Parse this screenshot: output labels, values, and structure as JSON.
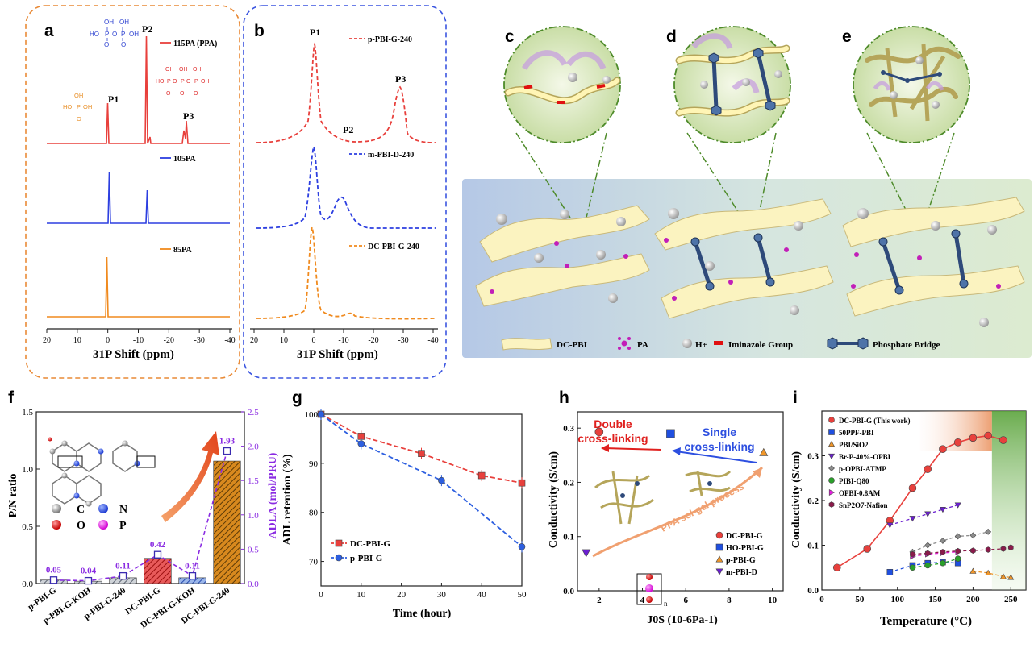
{
  "panels": {
    "a": {
      "letter": "a",
      "peaks": {
        "p1": "P1",
        "p2": "P2",
        "p3": "P3"
      },
      "ticks": [
        "20",
        "10",
        "0",
        "-10",
        "-20",
        "-30",
        "-40"
      ],
      "xlabel": "31P Shift (ppm)",
      "legend": [
        "115PA (PPA)",
        "105PA",
        "85PA"
      ]
    },
    "b": {
      "letter": "b",
      "legend": [
        "p-PBI-G-240",
        "m-PBI-D-240",
        "DC-PBI-G-240"
      ],
      "ticks": [
        "20",
        "10",
        "0",
        "-10",
        "-20",
        "-30",
        "-40"
      ],
      "xlabel": "31P Shift (ppm)"
    },
    "c": {
      "letter": "c"
    },
    "d": {
      "letter": "d"
    },
    "e": {
      "letter": "e"
    },
    "schematic_legend": {
      "dcpbi": "DC-PBI",
      "pa": "PA",
      "h": "H+",
      "iminazole": "Iminazole Group",
      "bridge": "Phosphate Bridge"
    },
    "f": {
      "letter": "f",
      "ylabel_left": "P/N ratio",
      "ylabel_right": "ADLA (mol/PRU)",
      "atoms": [
        "C",
        "N",
        "O",
        "P"
      ]
    },
    "g": {
      "letter": "g",
      "xlabel": "Time (hour)",
      "ylabel": "ADL retention (%)"
    },
    "h": {
      "letter": "h",
      "xlabel": "J0S (10-6Pa-1)",
      "ylabel": "Conductivity (S/cm)",
      "double": "Double",
      "double2": "cross-linking",
      "single": "Single",
      "single2": "cross-linking",
      "process": "PPA sol-gel process"
    },
    "i": {
      "letter": "i",
      "xlabel": "Temperature (°C)",
      "ylabel": "Conductivity (S/cm)"
    }
  },
  "chart_data": [
    {
      "type": "bar",
      "panel": "f",
      "categories": [
        "p-PBI-G",
        "p-PBI-G-KOH",
        "p-PBI-G-240",
        "DC-PBI-G",
        "DC-PBI-G-KOH",
        "DC-PBI-G-240"
      ],
      "series": [
        {
          "name": "P/N ratio",
          "values": [
            0.03,
            0.02,
            0.05,
            0.22,
            0.05,
            1.07
          ]
        },
        {
          "name": "ADLA",
          "values": [
            0.05,
            0.04,
            0.11,
            0.42,
            0.11,
            1.93
          ]
        }
      ],
      "data_labels": [
        "0.05",
        "0.04",
        "0.11",
        "0.42",
        "0.11",
        "1.93"
      ],
      "ylim_left": [
        0,
        1.5
      ],
      "ylim_right": [
        0,
        2.5
      ],
      "yticks_left": [
        "0.0",
        "0.5",
        "1.0",
        "1.5"
      ],
      "yticks_right": [
        "0.0",
        "0.5",
        "1.0",
        "1.5",
        "2.0",
        "2.5"
      ]
    },
    {
      "type": "line",
      "panel": "g",
      "x": [
        0,
        10,
        25,
        40,
        50
      ],
      "series": [
        {
          "name": "DC-PBI-G",
          "x": [
            0,
            10,
            25,
            40,
            50
          ],
          "values": [
            100,
            95.5,
            92,
            87.5,
            86
          ]
        },
        {
          "name": "p-PBI-G",
          "x": [
            0,
            10,
            30,
            50
          ],
          "values": [
            100,
            94,
            86.5,
            73
          ]
        }
      ],
      "xlim": [
        0,
        50
      ],
      "ylim": [
        65,
        100
      ],
      "xticks": [
        "0",
        "10",
        "20",
        "30",
        "40",
        "50"
      ],
      "yticks": [
        "70",
        "80",
        "90",
        "100"
      ]
    },
    {
      "type": "scatter",
      "panel": "h",
      "series": [
        {
          "name": "DC-PBI-G",
          "x": [
            2.0
          ],
          "values": [
            0.293
          ]
        },
        {
          "name": "HO-PBI-G",
          "x": [
            5.3
          ],
          "values": [
            0.29
          ]
        },
        {
          "name": "p-PBI-G",
          "x": [
            9.6
          ],
          "values": [
            0.255
          ]
        },
        {
          "name": "m-PBI-D",
          "x": [
            1.4
          ],
          "values": [
            0.07
          ]
        }
      ],
      "xlim": [
        1,
        10.5
      ],
      "ylim": [
        0,
        0.33
      ],
      "xticks": [
        "2",
        "4",
        "6",
        "8",
        "10"
      ],
      "yticks": [
        "0.0",
        "0.1",
        "0.2",
        "0.3"
      ]
    },
    {
      "type": "line",
      "panel": "i",
      "series": [
        {
          "name": "DC-PBI-G (This work)",
          "x": [
            20,
            60,
            90,
            120,
            140,
            160,
            180,
            200,
            220,
            240
          ],
          "values": [
            0.05,
            0.092,
            0.155,
            0.228,
            0.27,
            0.315,
            0.33,
            0.34,
            0.345,
            0.335
          ]
        },
        {
          "name": "50PPF-PBI",
          "x": [
            90,
            120,
            140,
            160,
            180
          ],
          "values": [
            0.04,
            0.055,
            0.06,
            0.062,
            0.06
          ]
        },
        {
          "name": "PBI/SiO2",
          "x": [
            200,
            220,
            240,
            250
          ],
          "values": [
            0.042,
            0.038,
            0.03,
            0.028
          ]
        },
        {
          "name": "Br-P-40%-OPBI",
          "x": [
            90,
            120,
            140,
            160,
            180
          ],
          "values": [
            0.145,
            0.16,
            0.17,
            0.18,
            0.19
          ]
        },
        {
          "name": "p-OPBI-ATMP",
          "x": [
            120,
            140,
            160,
            180,
            200,
            220
          ],
          "values": [
            0.085,
            0.1,
            0.11,
            0.12,
            0.122,
            0.13
          ]
        },
        {
          "name": "PIBI-Q80",
          "x": [
            120,
            140,
            160,
            180
          ],
          "values": [
            0.05,
            0.055,
            0.06,
            0.07
          ]
        },
        {
          "name": "OPBI-0.8AM",
          "x": [
            120,
            140,
            160,
            180
          ],
          "values": [
            0.075,
            0.08,
            0.083,
            0.085
          ]
        },
        {
          "name": "SnP2O7-Nafion",
          "x": [
            120,
            140,
            160,
            180,
            200,
            220,
            240,
            250
          ],
          "values": [
            0.08,
            0.082,
            0.085,
            0.087,
            0.088,
            0.09,
            0.092,
            0.095
          ]
        }
      ],
      "xlim": [
        0,
        270
      ],
      "ylim": [
        0,
        0.4
      ],
      "xticks": [
        "0",
        "50",
        "100",
        "150",
        "200",
        "250"
      ],
      "yticks": [
        "0.0",
        "0.1",
        "0.2",
        "0.3"
      ]
    }
  ]
}
